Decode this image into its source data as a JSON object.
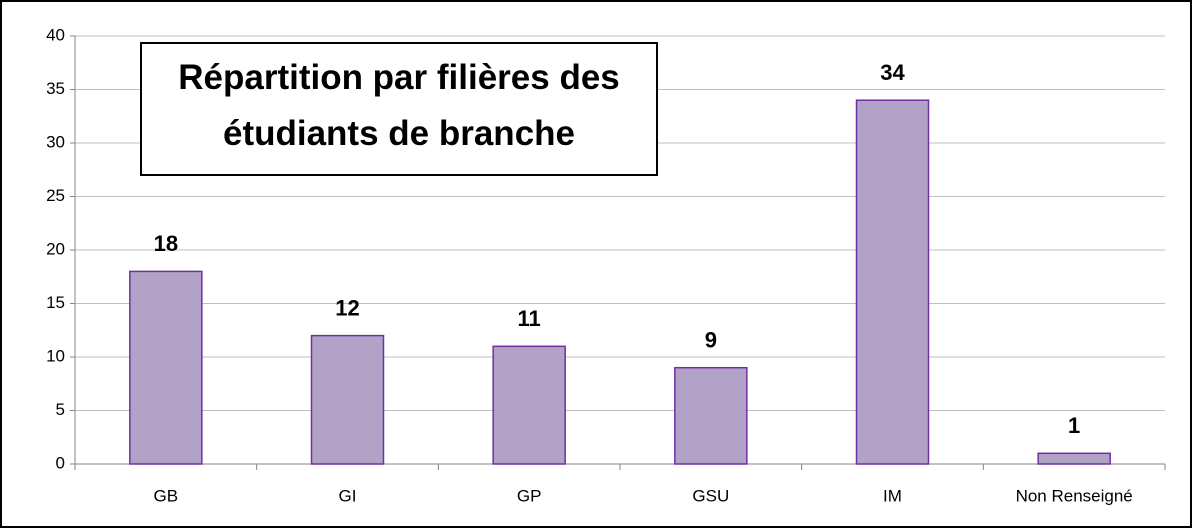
{
  "chart_data": {
    "type": "bar",
    "title": "Répartition par filières des étudiants de branche",
    "categories": [
      "GB",
      "GI",
      "GP",
      "GSU",
      "IM",
      "Non Renseigné"
    ],
    "values": [
      18,
      12,
      11,
      9,
      34,
      1
    ],
    "color": "#b3a2c7",
    "edge_color": "#7030a0",
    "ylim": [
      0,
      40
    ],
    "yticks": [
      0,
      5,
      10,
      15,
      20,
      25,
      30,
      35,
      40
    ],
    "grid": true
  }
}
